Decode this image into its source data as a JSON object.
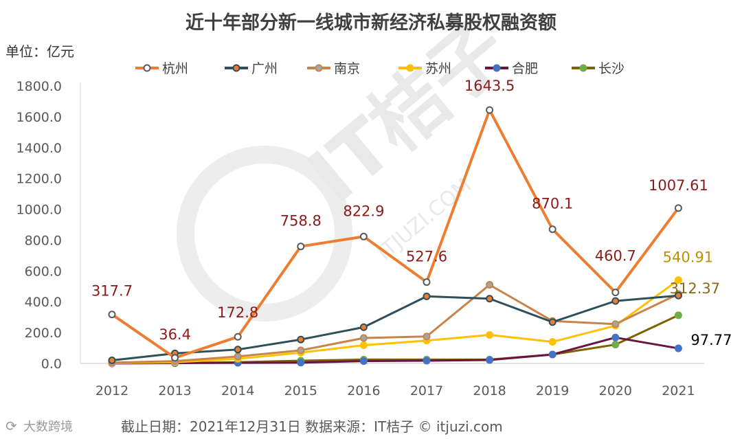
{
  "chart_data": {
    "type": "line",
    "title": "近十年部分新一线城市新经济私募股权融资额",
    "unit_label": "单位：亿元",
    "categories": [
      "2012",
      "2013",
      "2014",
      "2015",
      "2016",
      "2017",
      "2018",
      "2019",
      "2020",
      "2021"
    ],
    "ylim": [
      0,
      1800
    ],
    "yticks": [
      "0.0",
      "200.0",
      "400.0",
      "600.0",
      "800.0",
      "1000.0",
      "1200.0",
      "1400.0",
      "1600.0",
      "1800.0"
    ],
    "grid": false,
    "legend_position": "top",
    "series": [
      {
        "name": "杭州",
        "color": "#ED7D31",
        "marker_color": "#ffffff",
        "marker_stroke": "#595959",
        "width": 4,
        "values": [
          317.7,
          36.4,
          172.8,
          758.8,
          822.9,
          527.6,
          1643.5,
          870.1,
          460.7,
          1007.61
        ],
        "labels": [
          "317.7",
          "36.4",
          "172.8",
          "758.8",
          "822.9",
          "527.6",
          "1643.5",
          "870.1",
          "460.7",
          "1007.61"
        ],
        "label_color": "#8B1A1A"
      },
      {
        "name": "广州",
        "color": "#2F4F5A",
        "marker_color": "#ED7D31",
        "marker_stroke": "#2F4F5A",
        "width": 3,
        "values": [
          20,
          65,
          90,
          155,
          235,
          435,
          420,
          268,
          405,
          440
        ]
      },
      {
        "name": "南京",
        "color": "#C8834B",
        "marker_color": "#A5A5A5",
        "marker_stroke": "#C8834B",
        "width": 3,
        "values": [
          5,
          15,
          45,
          85,
          165,
          175,
          510,
          275,
          255,
          450
        ]
      },
      {
        "name": "苏州",
        "color": "#FFC000",
        "marker_color": "#FFC000",
        "marker_stroke": "#FFC000",
        "width": 3,
        "values": [
          2,
          8,
          30,
          70,
          118,
          148,
          185,
          140,
          245,
          540.91
        ],
        "labels": [
          "",
          "",
          "",
          "",
          "",
          "",
          "",
          "",
          "",
          "540.91"
        ],
        "label_color": "#BF9000"
      },
      {
        "name": "合肥",
        "color": "#6B1444",
        "marker_color": "#4472C4",
        "marker_stroke": "#4472C4",
        "width": 3,
        "values": [
          0,
          2,
          4,
          5,
          15,
          18,
          22,
          58,
          168,
          97.77
        ],
        "labels": [
          "",
          "",
          "",
          "",
          "",
          "",
          "",
          "",
          "",
          "97.77"
        ],
        "label_color": "#000000"
      },
      {
        "name": "长沙",
        "color": "#806000",
        "marker_color": "#70AD47",
        "marker_stroke": "#70AD47",
        "width": 3,
        "values": [
          1,
          3,
          8,
          18,
          25,
          25,
          25,
          58,
          122,
          312.37
        ],
        "labels": [
          "",
          "",
          "",
          "",
          "",
          "",
          "",
          "",
          "",
          "312.37"
        ],
        "label_color": "#8B6914"
      }
    ]
  },
  "footer": {
    "text": "截止日期：2021年12月31日    数据来源：IT桔子 © itjuzi.com",
    "brand": "大数跨境"
  },
  "watermark": {
    "text": "IT桔子",
    "sub": "ITJUZI.COM"
  }
}
